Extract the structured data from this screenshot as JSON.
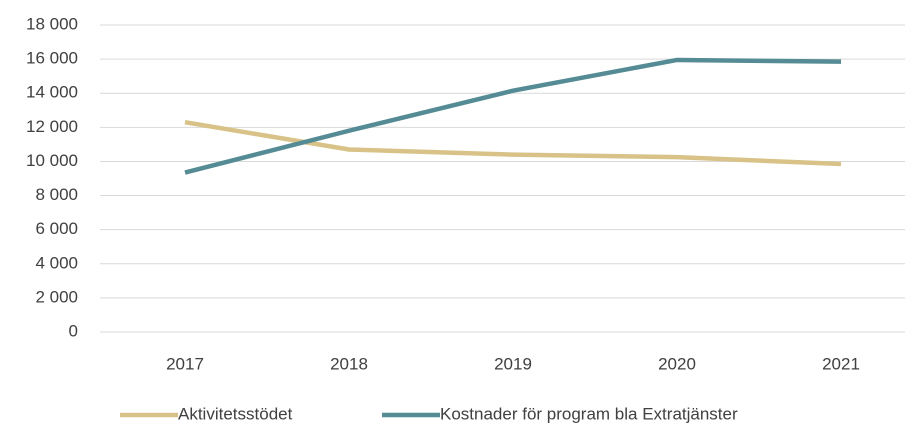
{
  "chart_data": {
    "type": "line",
    "categories": [
      "2017",
      "2018",
      "2019",
      "2020",
      "2021"
    ],
    "series": [
      {
        "name": "Aktivitetsstödet",
        "color": "#d8c287",
        "values": [
          12300,
          10700,
          10400,
          10250,
          9850
        ]
      },
      {
        "name": "Kostnader för program bla Extratjänster",
        "color": "#548b94",
        "values": [
          9350,
          11800,
          14150,
          15950,
          15850
        ]
      }
    ],
    "ylim": [
      0,
      18000
    ],
    "yticks": [
      0,
      {
        "value": 2000,
        "label": "2 000"
      },
      {
        "value": 4000,
        "label": "4 000"
      },
      {
        "value": 6000,
        "label": "6 000"
      },
      {
        "value": 8000,
        "label": "8 000"
      },
      {
        "value": 10000,
        "label": "10 000"
      },
      {
        "value": 12000,
        "label": "12 000"
      },
      {
        "value": 14000,
        "label": "14 000"
      },
      {
        "value": 16000,
        "label": "16 000"
      },
      {
        "value": 18000,
        "label": "18 000"
      }
    ],
    "grid": true,
    "legend": "bottom"
  }
}
